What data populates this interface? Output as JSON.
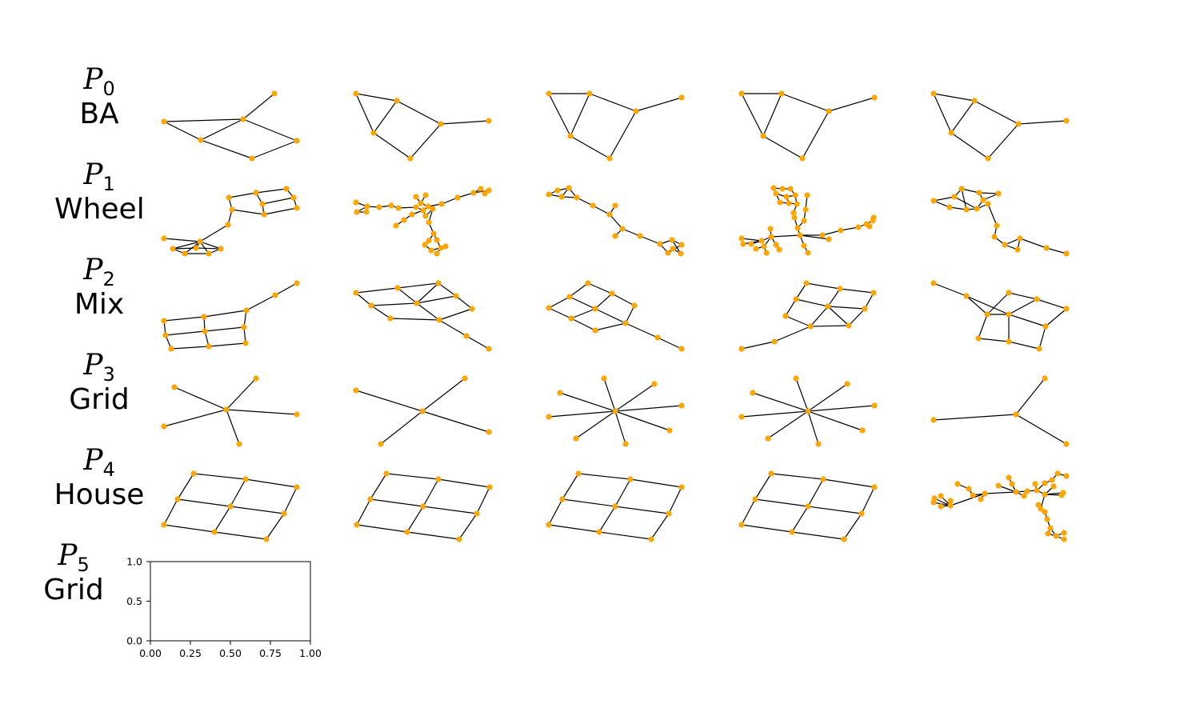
{
  "rows": [
    {
      "label_p": "P",
      "label_sub": "0",
      "label_name": "BA"
    },
    {
      "label_p": "P",
      "label_sub": "1",
      "label_name": "Wheel"
    },
    {
      "label_p": "P",
      "label_sub": "2",
      "label_name": "Mix"
    },
    {
      "label_p": "P",
      "label_sub": "3",
      "label_name": "Grid"
    },
    {
      "label_p": "P",
      "label_sub": "4",
      "label_name": "House"
    },
    {
      "label_p": "P",
      "label_sub": "5",
      "label_name": "Grid"
    }
  ],
  "colors": {
    "node": "#FFA500",
    "edge": "#000000"
  },
  "empty_axes": {
    "xticks": [
      "0.00",
      "0.25",
      "0.50",
      "0.75",
      "1.00"
    ],
    "yticks": [
      "0.0",
      "0.5",
      "1.0"
    ]
  }
}
